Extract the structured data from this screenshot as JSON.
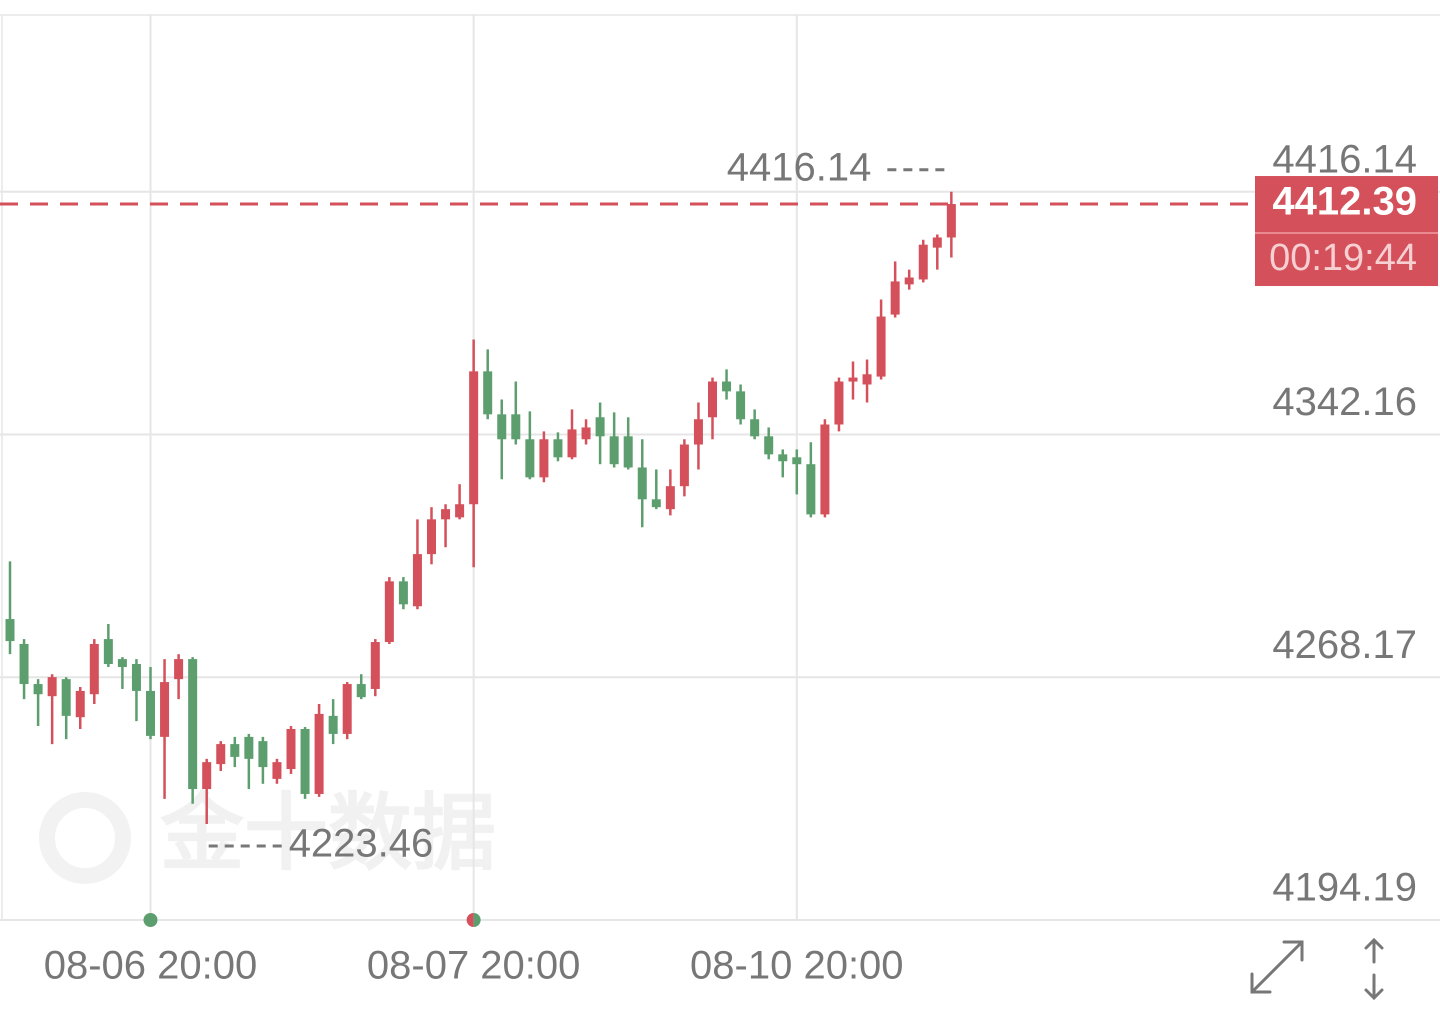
{
  "chart_data": {
    "type": "candlestick",
    "watermark": "金十数据",
    "categories": [
      null,
      null,
      null,
      null,
      null,
      null,
      null,
      null,
      null,
      null,
      "08-06 20:00",
      null,
      null,
      null,
      null,
      null,
      null,
      null,
      null,
      null,
      null,
      null,
      null,
      null,
      null,
      null,
      null,
      null,
      null,
      null,
      null,
      null,
      null,
      "08-07 20:00",
      null,
      null,
      null,
      null,
      null,
      null,
      null,
      null,
      null,
      null,
      null,
      null,
      null,
      null,
      null,
      null,
      null,
      null,
      null,
      null,
      null,
      null,
      "08-10 20:00",
      null,
      null,
      null,
      null,
      null,
      null,
      null,
      null,
      null,
      null,
      null
    ],
    "open": [
      4285.9,
      4278.3,
      4266.1,
      4262.4,
      4267.6,
      4256.0,
      4263.0,
      4279.8,
      4273.7,
      4272.2,
      4264.0,
      4250.0,
      4267.6,
      4273.7,
      4234.1,
      4241.7,
      4247.8,
      4250.0,
      4248.7,
      4237.2,
      4240.2,
      4252.4,
      4232.6,
      4256.4,
      4250.9,
      4266.1,
      4264.6,
      4278.9,
      4297.4,
      4289.8,
      4305.7,
      4316.3,
      4316.9,
      4320.9,
      4361.4,
      4348.3,
      4348.3,
      4340.7,
      4329.1,
      4340.7,
      4335.2,
      4340.7,
      4347.4,
      4341.6,
      4341.6,
      4332.1,
      4322.4,
      4319.4,
      4326.4,
      4339.1,
      4347.4,
      4358.3,
      4355.3,
      4346.8,
      4341.6,
      4336.1,
      4335.2,
      4333.1,
      4317.8,
      4345.2,
      4358.3,
      4357.4,
      4359.8,
      4378.7,
      4387.9,
      4389.4,
      4399.1,
      4402.2
    ],
    "high": [
      4303.5,
      4279.8,
      4267.6,
      4269.1,
      4268.2,
      4265.2,
      4279.8,
      4284.4,
      4274.3,
      4273.7,
      4271.3,
      4273.7,
      4275.2,
      4274.3,
      4243.3,
      4248.7,
      4250.0,
      4250.9,
      4250.0,
      4243.3,
      4253.3,
      4253.0,
      4260.0,
      4261.5,
      4266.7,
      4269.1,
      4279.8,
      4298.7,
      4298.7,
      4316.3,
      4320.0,
      4320.9,
      4327.0,
      4371.1,
      4368.1,
      4352.8,
      4358.3,
      4349.2,
      4343.1,
      4342.8,
      4349.8,
      4346.8,
      4351.9,
      4348.9,
      4347.4,
      4340.7,
      4331.5,
      4331.5,
      4340.7,
      4351.9,
      4359.5,
      4362.0,
      4357.4,
      4349.8,
      4344.3,
      4337.6,
      4337.6,
      4339.8,
      4346.8,
      4359.5,
      4364.4,
      4365.0,
      4383.3,
      4394.9,
      4392.4,
      4401.5,
      4403.1,
      4416.14
    ],
    "low": [
      4275.2,
      4261.5,
      4253.3,
      4247.8,
      4249.3,
      4252.4,
      4260.0,
      4271.3,
      4264.6,
      4254.8,
      4249.3,
      4231.1,
      4261.5,
      4229.6,
      4223.46,
      4239.6,
      4240.8,
      4234.1,
      4235.7,
      4235.7,
      4238.7,
      4231.1,
      4231.7,
      4247.8,
      4249.3,
      4261.5,
      4262.4,
      4278.3,
      4288.9,
      4288.9,
      4302.6,
      4307.8,
      4316.3,
      4301.7,
      4346.8,
      4328.5,
      4339.1,
      4328.5,
      4327.6,
      4334.0,
      4334.6,
      4339.1,
      4333.1,
      4332.1,
      4331.5,
      4313.9,
      4319.4,
      4317.5,
      4323.3,
      4331.5,
      4340.7,
      4352.8,
      4345.2,
      4340.7,
      4334.6,
      4329.1,
      4323.9,
      4316.9,
      4316.9,
      4343.1,
      4352.8,
      4351.9,
      4358.9,
      4377.8,
      4386.3,
      4388.5,
      4392.4,
      4396.1
    ],
    "close": [
      4279.2,
      4266.1,
      4263.0,
      4268.2,
      4256.4,
      4264.0,
      4278.3,
      4272.2,
      4271.3,
      4264.0,
      4250.3,
      4266.7,
      4273.7,
      4234.1,
      4242.3,
      4247.8,
      4243.9,
      4243.3,
      4240.8,
      4242.3,
      4252.4,
      4232.6,
      4257.0,
      4250.9,
      4266.1,
      4262.1,
      4278.9,
      4297.4,
      4290.4,
      4305.7,
      4316.3,
      4319.4,
      4320.9,
      4361.4,
      4348.3,
      4340.7,
      4340.7,
      4329.1,
      4340.7,
      4335.2,
      4343.7,
      4344.3,
      4341.6,
      4333.1,
      4332.1,
      4322.4,
      4320.0,
      4326.4,
      4339.1,
      4346.8,
      4358.3,
      4355.3,
      4346.8,
      4341.6,
      4336.1,
      4334.0,
      4333.1,
      4317.8,
      4345.2,
      4358.3,
      4359.5,
      4360.5,
      4378.1,
      4388.8,
      4390.0,
      4400.0,
      4402.2,
      4412.39
    ],
    "up_color": "#d4505a",
    "down_color": "#5c9e6e",
    "ylim": [
      4194.19,
      4470
    ],
    "yticks": [
      4194.19,
      4268.17,
      4342.16,
      4416.14
    ],
    "grid": true,
    "high_label": 4416.14,
    "low_label": 4223.46,
    "last_price": 4412.39,
    "countdown": "00:19:44"
  }
}
